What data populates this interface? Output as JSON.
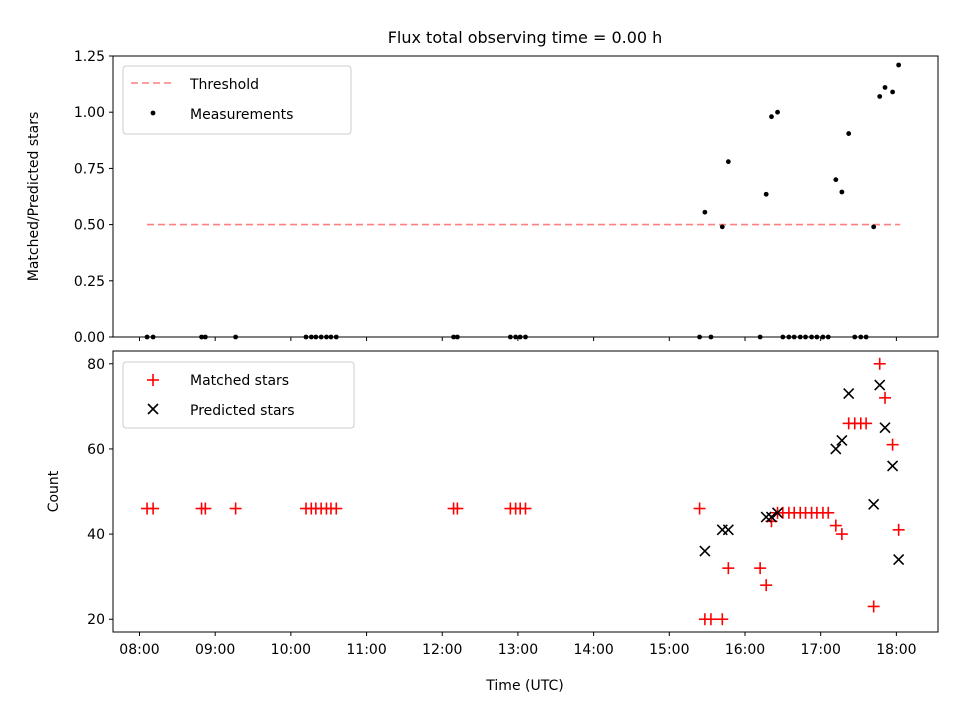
{
  "title": "Flux total observing time = 0.00 h",
  "chart_data": [
    {
      "type": "scatter",
      "ylabel": "Matched/Predicted stars",
      "ylim": [
        0,
        1.25
      ],
      "xlim": [
        7.65,
        18.55
      ],
      "yticks": [
        0,
        0.25,
        0.5,
        0.75,
        1.0,
        1.25
      ],
      "ytick_labels": [
        "0.00",
        "0.25",
        "0.50",
        "0.75",
        "1.00",
        "1.25"
      ],
      "legend": [
        "Threshold",
        "Measurements"
      ],
      "legend_position": "upper left",
      "threshold": {
        "name": "Threshold",
        "x": [
          8.1,
          18.05
        ],
        "y": 0.5,
        "color": "#ff7f7f",
        "style": "dashed"
      },
      "series": [
        {
          "name": "Measurements",
          "marker": "dot",
          "color": "#000000",
          "x": [
            8.1,
            8.18,
            8.82,
            8.87,
            9.27,
            10.2,
            10.27,
            10.33,
            10.4,
            10.47,
            10.53,
            10.6,
            12.15,
            12.2,
            12.9,
            12.97,
            13.03,
            13.1,
            15.4,
            15.47,
            15.55,
            15.7,
            15.78,
            16.2,
            16.28,
            16.35,
            16.43,
            16.5,
            16.58,
            16.65,
            16.73,
            16.8,
            16.88,
            16.95,
            17.03,
            17.1,
            17.2,
            17.28,
            17.37,
            17.45,
            17.53,
            17.6,
            17.7,
            17.78,
            17.85,
            17.95,
            18.03
          ],
          "y": [
            0,
            0,
            0,
            0,
            0,
            0,
            0,
            0,
            0,
            0,
            0,
            0,
            0,
            0,
            0,
            0,
            0,
            0,
            0,
            0.555,
            0,
            0.49,
            0.78,
            0,
            0.635,
            0.98,
            1.0,
            0,
            0,
            0,
            0,
            0,
            0,
            0,
            0,
            0,
            0.7,
            0.645,
            0.905,
            0,
            0,
            0,
            0.49,
            1.07,
            1.11,
            1.09,
            1.21
          ]
        }
      ]
    },
    {
      "type": "scatter",
      "ylabel": "Count",
      "xlabel": "Time (UTC)",
      "ylim": [
        17,
        83
      ],
      "xlim": [
        7.65,
        18.55
      ],
      "yticks": [
        20,
        40,
        60,
        80
      ],
      "xticks": [
        8,
        9,
        10,
        11,
        12,
        13,
        14,
        15,
        16,
        17,
        18
      ],
      "xtick_labels": [
        "08:00",
        "09:00",
        "10:00",
        "11:00",
        "12:00",
        "13:00",
        "14:00",
        "15:00",
        "16:00",
        "17:00",
        "18:00"
      ],
      "legend": [
        "Matched stars",
        "Predicted stars"
      ],
      "legend_position": "upper left",
      "series": [
        {
          "name": "Matched stars",
          "marker": "plus",
          "color": "#ff0000",
          "x": [
            8.1,
            8.18,
            8.82,
            8.87,
            9.27,
            10.2,
            10.27,
            10.33,
            10.4,
            10.47,
            10.53,
            10.6,
            12.15,
            12.2,
            12.9,
            12.97,
            13.03,
            13.1,
            15.4,
            15.47,
            15.55,
            15.7,
            15.78,
            16.2,
            16.28,
            16.35,
            16.43,
            16.5,
            16.58,
            16.65,
            16.73,
            16.8,
            16.88,
            16.95,
            17.03,
            17.1,
            17.2,
            17.28,
            17.37,
            17.45,
            17.53,
            17.6,
            17.7,
            17.78,
            17.85,
            17.95,
            18.03
          ],
          "y": [
            46,
            46,
            46,
            46,
            46,
            46,
            46,
            46,
            46,
            46,
            46,
            46,
            46,
            46,
            46,
            46,
            46,
            46,
            46,
            20,
            20,
            20,
            32,
            32,
            28,
            43,
            45,
            45,
            45,
            45,
            45,
            45,
            45,
            45,
            45,
            45,
            42,
            40,
            66,
            66,
            66,
            66,
            23,
            80,
            72,
            61,
            41
          ]
        },
        {
          "name": "Predicted stars",
          "marker": "x",
          "color": "#000000",
          "x": [
            15.47,
            15.7,
            15.78,
            16.28,
            16.35,
            16.43,
            17.2,
            17.28,
            17.37,
            17.7,
            17.78,
            17.85,
            17.95,
            18.03
          ],
          "y": [
            36,
            41,
            41,
            44,
            44,
            45,
            60,
            62,
            73,
            47,
            75,
            65,
            56,
            34
          ]
        }
      ]
    }
  ]
}
